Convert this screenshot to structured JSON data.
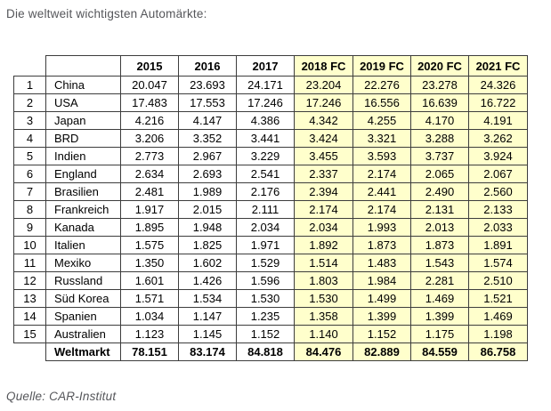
{
  "title": "Die weltweit wichtigsten Automärkte:",
  "source": "Quelle: CAR-Institut",
  "colors": {
    "forecast_bg": "#FFFFCC",
    "border": "#3D3D3D",
    "title_text": "#55565A",
    "cell_text": "#000000"
  },
  "chart_data": {
    "type": "table",
    "title": "Die weltweit wichtigsten Automärkte:",
    "source": "Quelle: CAR-Institut",
    "years": [
      "2015",
      "2016",
      "2017",
      "2018 FC",
      "2019 FC",
      "2020 FC",
      "2021 FC"
    ],
    "forecast_columns": [
      "2018 FC",
      "2019 FC",
      "2020 FC",
      "2021 FC"
    ],
    "rows": [
      {
        "rank": "1",
        "country": "China",
        "values": [
          "20.047",
          "23.693",
          "24.171",
          "23.204",
          "22.276",
          "23.278",
          "24.326"
        ]
      },
      {
        "rank": "2",
        "country": "USA",
        "values": [
          "17.483",
          "17.553",
          "17.246",
          "17.246",
          "16.556",
          "16.639",
          "16.722"
        ]
      },
      {
        "rank": "3",
        "country": "Japan",
        "values": [
          "4.216",
          "4.147",
          "4.386",
          "4.342",
          "4.255",
          "4.170",
          "4.191"
        ]
      },
      {
        "rank": "4",
        "country": "BRD",
        "values": [
          "3.206",
          "3.352",
          "3.441",
          "3.424",
          "3.321",
          "3.288",
          "3.262"
        ]
      },
      {
        "rank": "5",
        "country": "Indien",
        "values": [
          "2.773",
          "2.967",
          "3.229",
          "3.455",
          "3.593",
          "3.737",
          "3.924"
        ]
      },
      {
        "rank": "6",
        "country": "England",
        "values": [
          "2.634",
          "2.693",
          "2.541",
          "2.337",
          "2.174",
          "2.065",
          "2.067"
        ]
      },
      {
        "rank": "7",
        "country": "Brasilien",
        "values": [
          "2.481",
          "1.989",
          "2.176",
          "2.394",
          "2.441",
          "2.490",
          "2.560"
        ]
      },
      {
        "rank": "8",
        "country": "Frankreich",
        "values": [
          "1.917",
          "2.015",
          "2.111",
          "2.174",
          "2.174",
          "2.131",
          "2.133"
        ]
      },
      {
        "rank": "9",
        "country": "Kanada",
        "values": [
          "1.895",
          "1.948",
          "2.034",
          "2.034",
          "1.993",
          "2.013",
          "2.033"
        ]
      },
      {
        "rank": "10",
        "country": "Italien",
        "values": [
          "1.575",
          "1.825",
          "1.971",
          "1.892",
          "1.873",
          "1.873",
          "1.891"
        ]
      },
      {
        "rank": "11",
        "country": "Mexiko",
        "values": [
          "1.350",
          "1.602",
          "1.529",
          "1.514",
          "1.483",
          "1.543",
          "1.574"
        ]
      },
      {
        "rank": "12",
        "country": "Russland",
        "values": [
          "1.601",
          "1.426",
          "1.596",
          "1.803",
          "1.984",
          "2.281",
          "2.510"
        ]
      },
      {
        "rank": "13",
        "country": "Süd Korea",
        "values": [
          "1.571",
          "1.534",
          "1.530",
          "1.530",
          "1.499",
          "1.469",
          "1.521"
        ]
      },
      {
        "rank": "14",
        "country": "Spanien",
        "values": [
          "1.034",
          "1.147",
          "1.235",
          "1.358",
          "1.399",
          "1.399",
          "1.469"
        ]
      },
      {
        "rank": "15",
        "country": "Australien",
        "values": [
          "1.123",
          "1.145",
          "1.152",
          "1.140",
          "1.152",
          "1.175",
          "1.198"
        ]
      }
    ],
    "total_row": {
      "label": "Weltmarkt",
      "values": [
        "78.151",
        "83.174",
        "84.818",
        "84.476",
        "82.889",
        "84.559",
        "86.758"
      ]
    }
  }
}
